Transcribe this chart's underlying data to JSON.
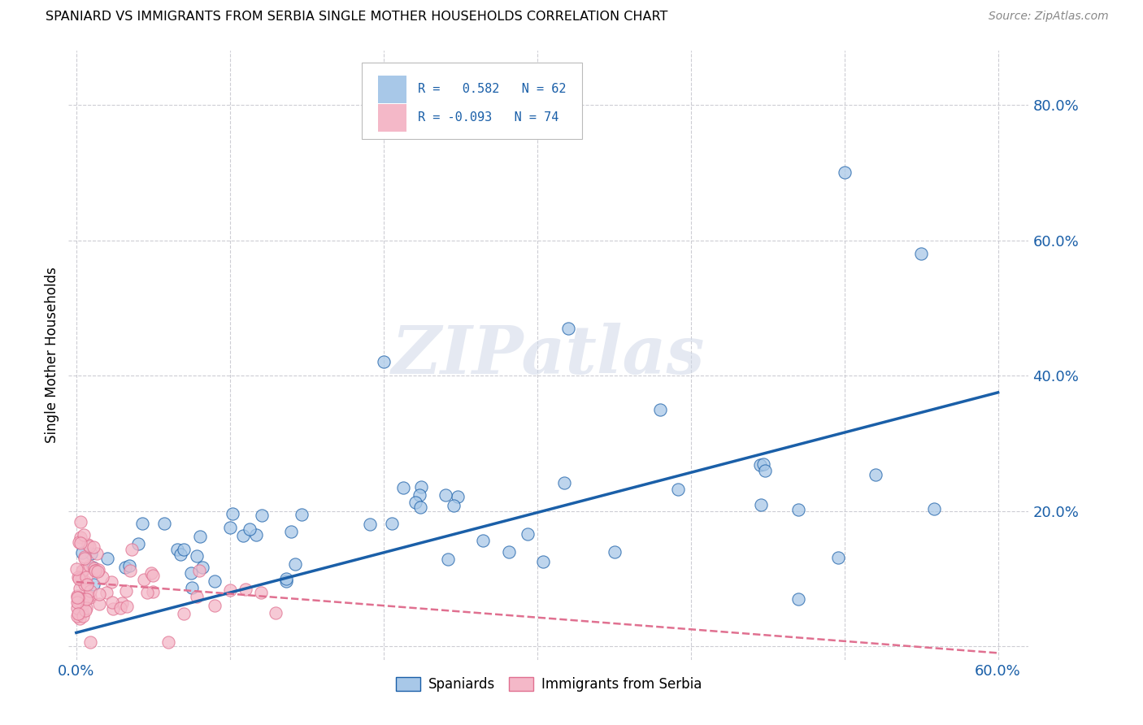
{
  "title": "SPANIARD VS IMMIGRANTS FROM SERBIA SINGLE MOTHER HOUSEHOLDS CORRELATION CHART",
  "source": "Source: ZipAtlas.com",
  "ylabel": "Single Mother Households",
  "xlim": [
    -0.005,
    0.62
  ],
  "ylim": [
    -0.02,
    0.88
  ],
  "xticks": [
    0.0,
    0.1,
    0.2,
    0.3,
    0.4,
    0.5,
    0.6
  ],
  "xtick_labels": [
    "0.0%",
    "",
    "",
    "",
    "",
    "",
    "60.0%"
  ],
  "yticks": [
    0.0,
    0.2,
    0.4,
    0.6,
    0.8
  ],
  "ytick_labels": [
    "",
    "20.0%",
    "40.0%",
    "60.0%",
    "80.0%"
  ],
  "r_blue": 0.582,
  "n_blue": 62,
  "r_pink": -0.093,
  "n_pink": 74,
  "blue_color": "#a8c8e8",
  "pink_color": "#f4b8c8",
  "blue_line_color": "#1a5fa8",
  "pink_line_color": "#e07090",
  "legend_label_blue": "Spaniards",
  "legend_label_pink": "Immigrants from Serbia",
  "watermark": "ZIPatlas",
  "blue_line_x0": 0.0,
  "blue_line_y0": 0.02,
  "blue_line_x1": 0.6,
  "blue_line_y1": 0.375,
  "pink_line_x0": 0.0,
  "pink_line_y0": 0.095,
  "pink_line_x1": 0.6,
  "pink_line_y1": -0.01
}
